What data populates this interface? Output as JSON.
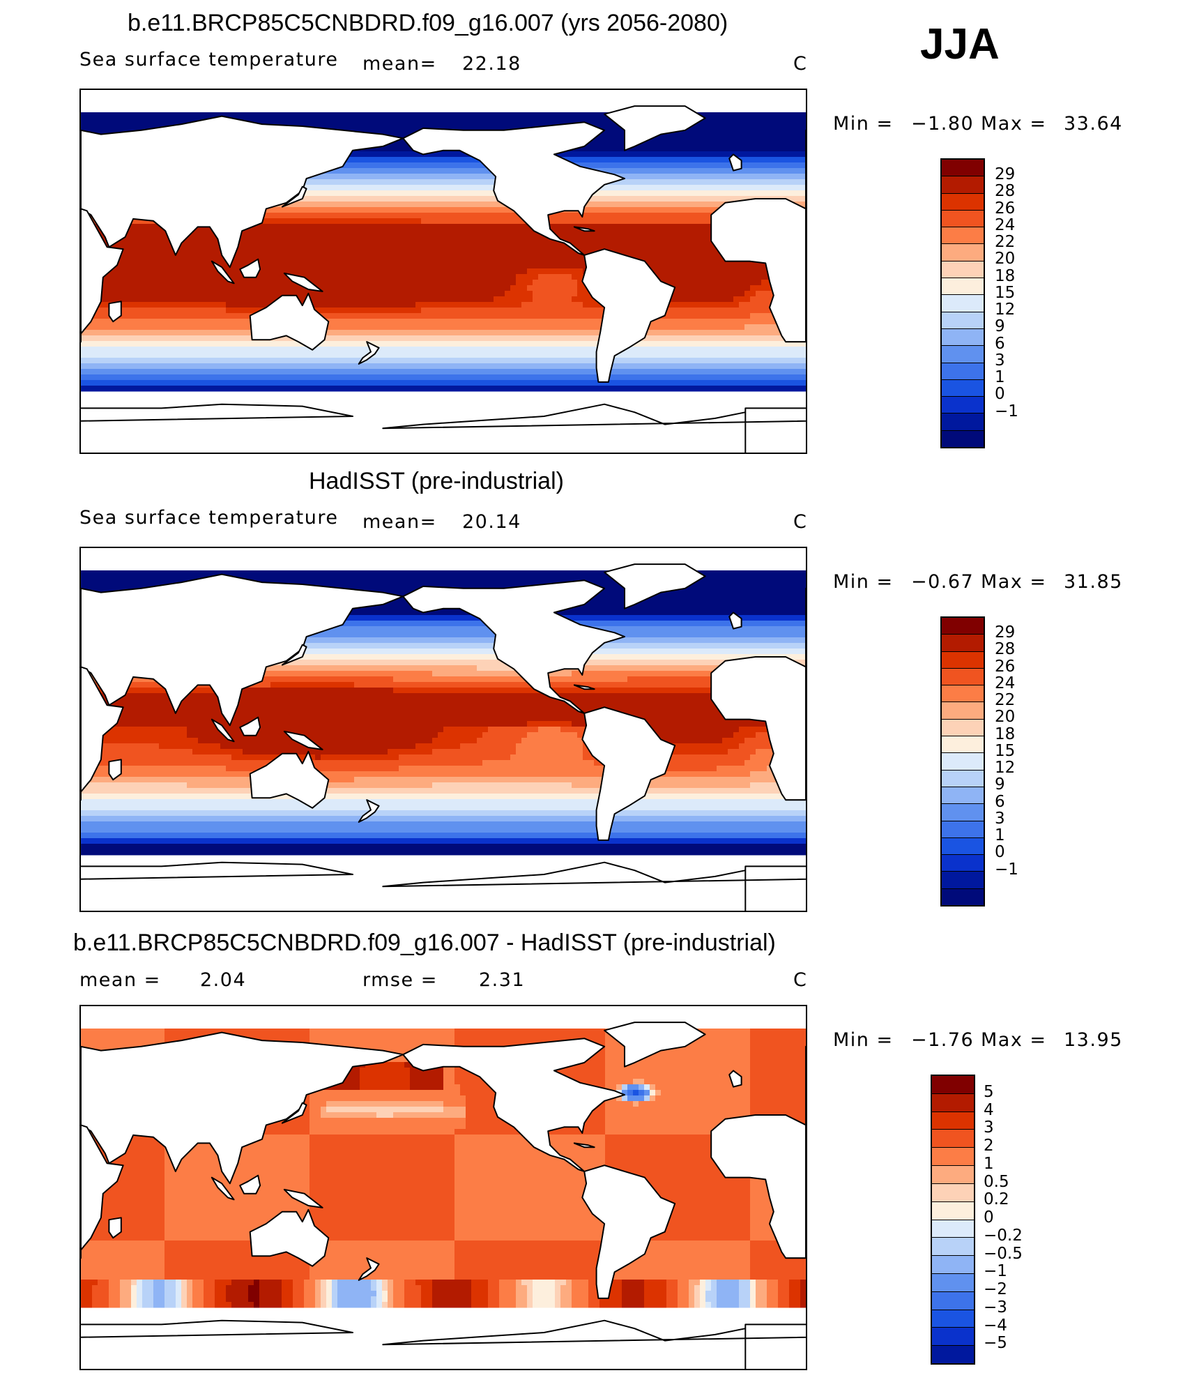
{
  "season": "JJA",
  "colors": {
    "abs_scale": [
      "#800000",
      "#b31b00",
      "#dc3300",
      "#f05420",
      "#fc7d46",
      "#fdab7f",
      "#fdd2b7",
      "#fdefdd",
      "#dceafa",
      "#b8d2f8",
      "#8fb4f5",
      "#6091ef",
      "#3d73ea",
      "#1a54e2",
      "#0a32cc",
      "#00189e",
      "#000a7a"
    ],
    "diff_scale": [
      "#800000",
      "#b31b00",
      "#dc3300",
      "#f05420",
      "#fc7d46",
      "#fdab7f",
      "#fdd2b7",
      "#fdefdd",
      "#dceafa",
      "#b8d2f8",
      "#8fb4f5",
      "#6091ef",
      "#3d73ea",
      "#1a54e2",
      "#0a32cc",
      "#00189e"
    ],
    "land": "#ffffff",
    "coast": "#000000"
  },
  "panels": [
    {
      "title": "b.e11.BRCP85C5CNBDRD.f09_g16.007 (yrs 2056-2080)",
      "left_label": "Sea surface temperature",
      "stat_label": "mean=",
      "stat_value": "22.18",
      "extra_label": "",
      "extra_value": "",
      "units": "C",
      "min_label": "Min  =",
      "min_value": "−1.80",
      "max_label": "Max  =",
      "max_value": "33.64",
      "ticks": [
        "29",
        "28",
        "26",
        "24",
        "22",
        "20",
        "18",
        "15",
        "12",
        "9",
        "6",
        "3",
        "1",
        "0",
        "−1"
      ],
      "field": "future"
    },
    {
      "title": "HadISST (pre-industrial)",
      "left_label": "Sea surface temperature",
      "stat_label": "mean=",
      "stat_value": "20.14",
      "extra_label": "",
      "extra_value": "",
      "units": "C",
      "min_label": "Min  =",
      "min_value": "−0.67",
      "max_label": "Max  =",
      "max_value": "31.85",
      "ticks": [
        "29",
        "28",
        "26",
        "24",
        "22",
        "20",
        "18",
        "15",
        "12",
        "9",
        "6",
        "3",
        "1",
        "0",
        "−1"
      ],
      "field": "obs"
    },
    {
      "title": "b.e11.BRCP85C5CNBDRD.f09_g16.007 - HadISST (pre-industrial)",
      "left_label": "",
      "stat_label": "mean  =",
      "stat_value": "2.04",
      "extra_label": "rmse  =",
      "extra_value": "2.31",
      "units": "C",
      "min_label": "Min  =",
      "min_value": "−1.76",
      "max_label": "Max  =",
      "max_value": "13.95",
      "ticks": [
        "5",
        "4",
        "3",
        "2",
        "1",
        "0.5",
        "0.2",
        "0",
        "−0.2",
        "−0.5",
        "−1",
        "−2",
        "−3",
        "−4",
        "−5"
      ],
      "field": "diff"
    }
  ]
}
